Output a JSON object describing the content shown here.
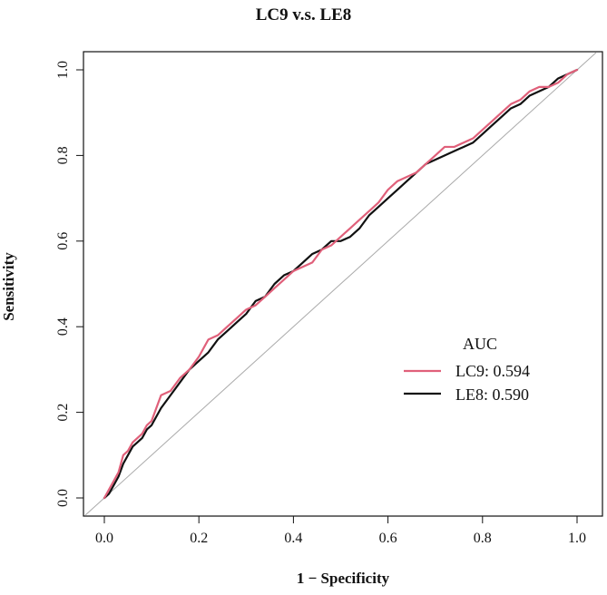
{
  "chart_data": {
    "type": "line",
    "title": "LC9 v.s. LE8",
    "xlabel": "1 − Specificity",
    "ylabel": "Sensitivity",
    "xlim": [
      -0.04,
      1.04
    ],
    "ylim": [
      -0.04,
      1.04
    ],
    "xticks": [
      "0.0",
      "0.2",
      "0.4",
      "0.6",
      "0.8",
      "1.0"
    ],
    "yticks": [
      "0.0",
      "0.2",
      "0.4",
      "0.6",
      "0.8",
      "1.0"
    ],
    "diagonal": {
      "x": [
        -0.04,
        1.04
      ],
      "y": [
        -0.04,
        1.04
      ],
      "color": "#aaaaaa"
    },
    "legend": {
      "title": "AUC",
      "position": "middle-right",
      "entries": [
        "LC9: 0.594",
        "LE8: 0.590"
      ]
    },
    "series": [
      {
        "name": "LC9",
        "auc": "0.594",
        "color": "#e0607a",
        "x": [
          0.0,
          0.01,
          0.02,
          0.03,
          0.04,
          0.05,
          0.06,
          0.07,
          0.08,
          0.09,
          0.1,
          0.12,
          0.14,
          0.16,
          0.18,
          0.2,
          0.22,
          0.24,
          0.26,
          0.28,
          0.3,
          0.32,
          0.34,
          0.36,
          0.38,
          0.4,
          0.42,
          0.44,
          0.46,
          0.48,
          0.5,
          0.52,
          0.54,
          0.56,
          0.58,
          0.6,
          0.62,
          0.64,
          0.66,
          0.68,
          0.7,
          0.72,
          0.74,
          0.76,
          0.78,
          0.8,
          0.82,
          0.84,
          0.86,
          0.88,
          0.9,
          0.92,
          0.94,
          0.96,
          0.98,
          1.0
        ],
        "y": [
          0.0,
          0.02,
          0.04,
          0.06,
          0.1,
          0.11,
          0.13,
          0.14,
          0.15,
          0.17,
          0.18,
          0.24,
          0.25,
          0.28,
          0.3,
          0.33,
          0.37,
          0.38,
          0.4,
          0.42,
          0.44,
          0.45,
          0.47,
          0.49,
          0.51,
          0.53,
          0.54,
          0.55,
          0.58,
          0.59,
          0.61,
          0.63,
          0.65,
          0.67,
          0.69,
          0.72,
          0.74,
          0.75,
          0.76,
          0.78,
          0.8,
          0.82,
          0.82,
          0.83,
          0.84,
          0.86,
          0.88,
          0.9,
          0.92,
          0.93,
          0.95,
          0.96,
          0.96,
          0.97,
          0.99,
          1.0
        ]
      },
      {
        "name": "LE8",
        "auc": "0.590",
        "color": "#111111",
        "x": [
          0.0,
          0.01,
          0.02,
          0.03,
          0.04,
          0.05,
          0.06,
          0.07,
          0.08,
          0.09,
          0.1,
          0.12,
          0.14,
          0.16,
          0.18,
          0.2,
          0.22,
          0.24,
          0.26,
          0.28,
          0.3,
          0.32,
          0.34,
          0.36,
          0.38,
          0.4,
          0.42,
          0.44,
          0.46,
          0.48,
          0.5,
          0.52,
          0.54,
          0.56,
          0.58,
          0.6,
          0.62,
          0.64,
          0.66,
          0.68,
          0.7,
          0.72,
          0.74,
          0.76,
          0.78,
          0.8,
          0.82,
          0.84,
          0.86,
          0.88,
          0.9,
          0.92,
          0.94,
          0.96,
          0.98,
          1.0
        ],
        "y": [
          0.0,
          0.01,
          0.03,
          0.05,
          0.08,
          0.1,
          0.12,
          0.13,
          0.14,
          0.16,
          0.17,
          0.21,
          0.24,
          0.27,
          0.3,
          0.32,
          0.34,
          0.37,
          0.39,
          0.41,
          0.43,
          0.46,
          0.47,
          0.5,
          0.52,
          0.53,
          0.55,
          0.57,
          0.58,
          0.6,
          0.6,
          0.61,
          0.63,
          0.66,
          0.68,
          0.7,
          0.72,
          0.74,
          0.76,
          0.78,
          0.79,
          0.8,
          0.81,
          0.82,
          0.83,
          0.85,
          0.87,
          0.89,
          0.91,
          0.92,
          0.94,
          0.95,
          0.96,
          0.98,
          0.99,
          1.0
        ]
      }
    ]
  }
}
